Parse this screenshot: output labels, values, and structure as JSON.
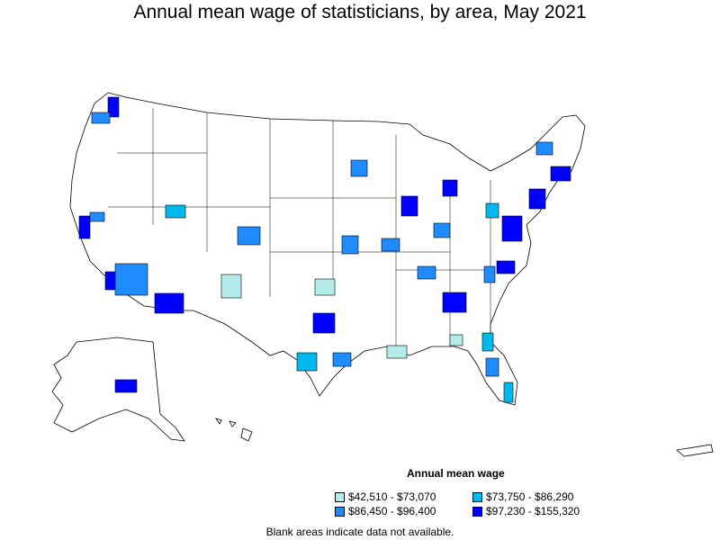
{
  "title": "Annual mean wage of statisticians, by area, May 2021",
  "legend": {
    "title": "Annual mean wage",
    "items": [
      {
        "label": "$42,510 - $73,070",
        "color": "#b4ecec"
      },
      {
        "label": "$73,750 - $86,290",
        "color": "#00b9ec"
      },
      {
        "label": "$86,450 - $96,400",
        "color": "#1e8cff"
      },
      {
        "label": "$97,230 - $155,320",
        "color": "#0000ff"
      }
    ]
  },
  "footnote": "Blank areas indicate data not available.",
  "colors": {
    "level1": "#b4ecec",
    "level2": "#00b9ec",
    "level3": "#1e8cff",
    "level4": "#0000ff",
    "outline": "#000000",
    "land": "#ffffff"
  }
}
